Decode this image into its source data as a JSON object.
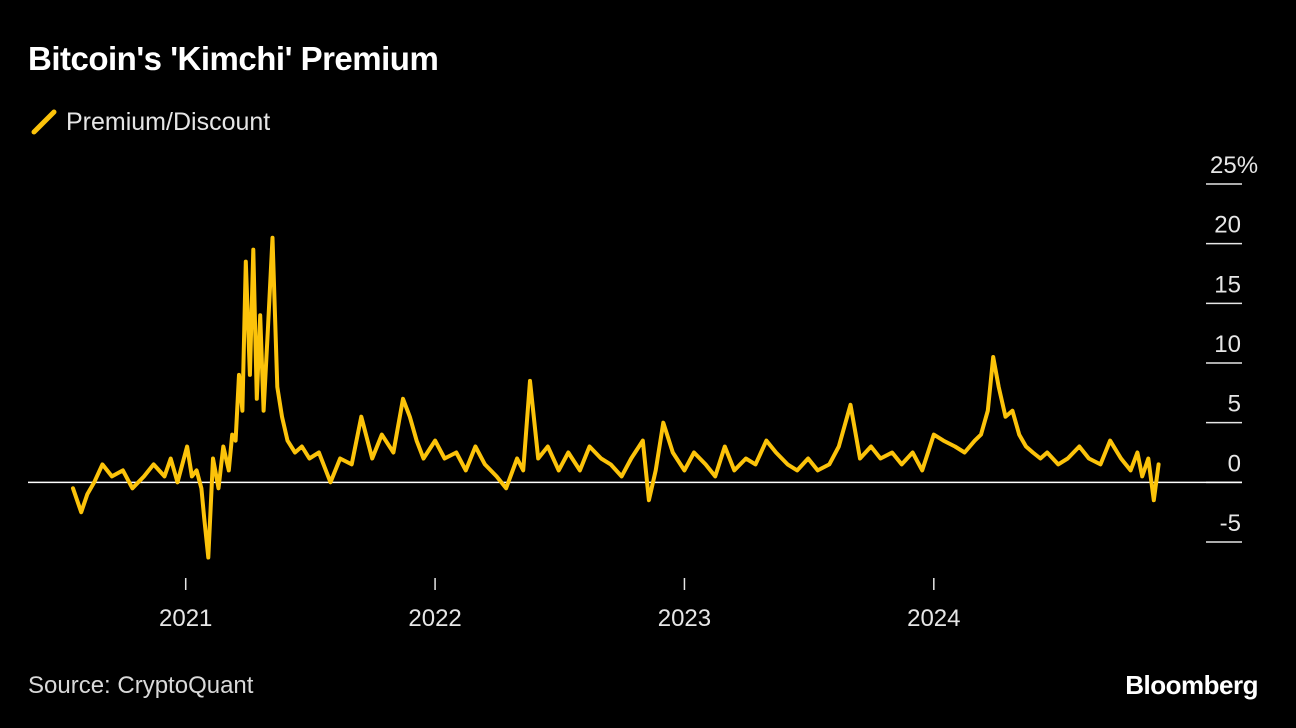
{
  "title": "Bitcoin's 'Kimchi' Premium",
  "source": "Source: CryptoQuant",
  "brand": "Bloomberg",
  "colors": {
    "background": "#000000",
    "series": "#fcc30a",
    "zero_line": "#ffffff",
    "axis_text": "#e6e6e6"
  },
  "chart_data": {
    "type": "line",
    "title": "Bitcoin's 'Kimchi' Premium",
    "xlabel": "",
    "ylabel": "",
    "legend_position": "top-left",
    "grid": false,
    "x_ticks": [
      "2021",
      "2022",
      "2023",
      "2024"
    ],
    "y_ticks": [
      25,
      20,
      15,
      10,
      5,
      0,
      -5
    ],
    "y_tick_labels": [
      "25%",
      "20",
      "15",
      "10",
      "5",
      "0",
      "-5"
    ],
    "ylim": [
      -5,
      25
    ],
    "xlim": [
      "2020-07-01",
      "2024-11-30"
    ],
    "reference_line_y": 0,
    "series": [
      {
        "name": "Premium/Discount",
        "x": [
          "2020-07-20",
          "2020-08-01",
          "2020-08-10",
          "2020-08-20",
          "2020-09-01",
          "2020-09-15",
          "2020-10-01",
          "2020-10-15",
          "2020-11-01",
          "2020-11-15",
          "2020-12-01",
          "2020-12-10",
          "2020-12-20",
          "2020-12-27",
          "2021-01-03",
          "2021-01-10",
          "2021-01-17",
          "2021-01-24",
          "2021-01-28",
          "2021-02-03",
          "2021-02-10",
          "2021-02-18",
          "2021-02-25",
          "2021-03-05",
          "2021-03-10",
          "2021-03-15",
          "2021-03-20",
          "2021-03-25",
          "2021-03-30",
          "2021-04-05",
          "2021-04-10",
          "2021-04-15",
          "2021-04-20",
          "2021-04-25",
          "2021-05-01",
          "2021-05-08",
          "2021-05-15",
          "2021-05-22",
          "2021-05-30",
          "2021-06-10",
          "2021-06-20",
          "2021-07-01",
          "2021-07-15",
          "2021-08-01",
          "2021-08-15",
          "2021-09-01",
          "2021-09-15",
          "2021-10-01",
          "2021-10-15",
          "2021-11-01",
          "2021-11-15",
          "2021-11-25",
          "2021-12-05",
          "2021-12-15",
          "2022-01-01",
          "2022-01-15",
          "2022-02-01",
          "2022-02-15",
          "2022-03-01",
          "2022-03-15",
          "2022-04-01",
          "2022-04-15",
          "2022-05-01",
          "2022-05-10",
          "2022-05-20",
          "2022-06-01",
          "2022-06-15",
          "2022-07-01",
          "2022-07-15",
          "2022-08-01",
          "2022-08-15",
          "2022-09-01",
          "2022-09-15",
          "2022-10-01",
          "2022-10-15",
          "2022-11-01",
          "2022-11-10",
          "2022-11-20",
          "2022-12-01",
          "2022-12-15",
          "2023-01-01",
          "2023-01-15",
          "2023-02-01",
          "2023-02-15",
          "2023-03-01",
          "2023-03-15",
          "2023-04-01",
          "2023-04-15",
          "2023-05-01",
          "2023-05-15",
          "2023-06-01",
          "2023-06-15",
          "2023-07-01",
          "2023-07-15",
          "2023-08-01",
          "2023-08-15",
          "2023-09-01",
          "2023-09-15",
          "2023-10-01",
          "2023-10-15",
          "2023-11-01",
          "2023-11-15",
          "2023-12-01",
          "2023-12-15",
          "2024-01-01",
          "2024-01-15",
          "2024-02-01",
          "2024-02-15",
          "2024-03-01",
          "2024-03-10",
          "2024-03-20",
          "2024-03-28",
          "2024-04-05",
          "2024-04-15",
          "2024-04-25",
          "2024-05-05",
          "2024-05-15",
          "2024-05-25",
          "2024-06-05",
          "2024-06-15",
          "2024-07-01",
          "2024-07-15",
          "2024-08-01",
          "2024-08-15",
          "2024-09-01",
          "2024-09-15",
          "2024-10-01",
          "2024-10-15",
          "2024-10-25",
          "2024-11-01",
          "2024-11-10",
          "2024-11-18",
          "2024-11-25"
        ],
        "y": [
          -0.5,
          -2.5,
          -1.0,
          0.0,
          1.5,
          0.5,
          1.0,
          -0.5,
          0.5,
          1.5,
          0.5,
          2.0,
          0.0,
          1.5,
          3.0,
          0.5,
          1.0,
          -0.5,
          -3.0,
          -6.3,
          2.0,
          -0.5,
          3.0,
          1.0,
          4.0,
          3.5,
          9.0,
          6.0,
          18.5,
          9.0,
          19.5,
          7.0,
          14.0,
          6.0,
          12.5,
          20.5,
          8.0,
          5.5,
          3.5,
          2.5,
          3.0,
          2.0,
          2.5,
          0.0,
          2.0,
          1.5,
          5.5,
          2.0,
          4.0,
          2.5,
          7.0,
          5.5,
          3.5,
          2.0,
          3.5,
          2.0,
          2.5,
          1.0,
          3.0,
          1.5,
          0.5,
          -0.5,
          2.0,
          1.0,
          8.5,
          2.0,
          3.0,
          1.0,
          2.5,
          1.0,
          3.0,
          2.0,
          1.5,
          0.5,
          2.0,
          3.5,
          -1.5,
          1.0,
          5.0,
          2.5,
          1.0,
          2.5,
          1.5,
          0.5,
          3.0,
          1.0,
          2.0,
          1.5,
          3.5,
          2.5,
          1.5,
          1.0,
          2.0,
          1.0,
          1.5,
          3.0,
          6.5,
          2.0,
          3.0,
          2.0,
          2.5,
          1.5,
          2.5,
          1.0,
          4.0,
          3.5,
          3.0,
          2.5,
          3.5,
          4.0,
          6.0,
          10.5,
          8.0,
          5.5,
          6.0,
          4.0,
          3.0,
          2.5,
          2.0,
          2.5,
          1.5,
          2.0,
          3.0,
          2.0,
          1.5,
          3.5,
          2.0,
          1.0,
          2.5,
          0.5,
          2.0,
          -1.5,
          1.5
        ]
      }
    ]
  },
  "legend": {
    "label": "Premium/Discount"
  }
}
